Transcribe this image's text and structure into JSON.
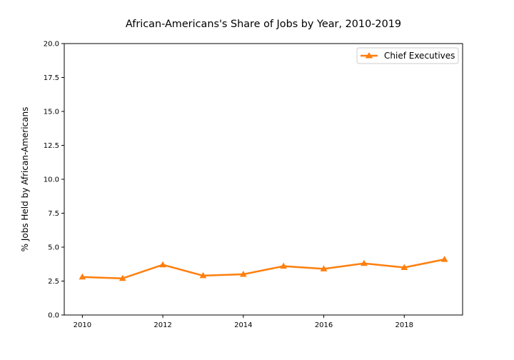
{
  "chart_data": {
    "type": "line",
    "title": "African-Americans's Share of Jobs by Year, 2010-2019",
    "xlabel": "",
    "ylabel": "% Jobs Held by African-Americans",
    "xlim": [
      2009.55,
      2019.45
    ],
    "ylim": [
      0,
      20
    ],
    "x_ticks": [
      2010,
      2012,
      2014,
      2016,
      2018
    ],
    "y_ticks": [
      0.0,
      2.5,
      5.0,
      7.5,
      10.0,
      12.5,
      15.0,
      17.5,
      20.0
    ],
    "x_tick_labels": [
      "2010",
      "2012",
      "2014",
      "2016",
      "2018"
    ],
    "y_tick_labels": [
      "0.0",
      "2.5",
      "5.0",
      "7.5",
      "10.0",
      "12.5",
      "15.0",
      "17.5",
      "20.0"
    ],
    "grid": false,
    "legend_position": "top-right",
    "x": [
      2010,
      2011,
      2012,
      2013,
      2014,
      2015,
      2016,
      2017,
      2018,
      2019
    ],
    "series": [
      {
        "name": "Chief Executives",
        "color": "#ff7f0e",
        "marker": "triangle",
        "values": [
          2.8,
          2.7,
          3.7,
          2.9,
          3.0,
          3.6,
          3.4,
          3.8,
          3.5,
          4.1
        ]
      }
    ]
  }
}
